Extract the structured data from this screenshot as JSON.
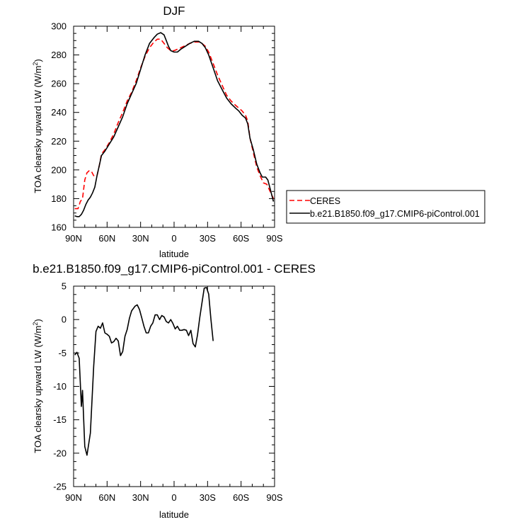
{
  "chart_data": [
    {
      "type": "line",
      "title": "DJF",
      "xlabel": "latitude",
      "ylabel": "TOA clearsky upward LW (W/m²)",
      "xlim": [
        90,
        -90
      ],
      "ylim": [
        160,
        300
      ],
      "x_ticks": [
        90,
        60,
        30,
        0,
        -30,
        -60,
        -90
      ],
      "x_tick_labels": [
        "90N",
        "60N",
        "30N",
        "0",
        "30S",
        "60S",
        "90S"
      ],
      "y_ticks": [
        160,
        180,
        200,
        220,
        240,
        260,
        280,
        300
      ],
      "y_tick_labels": [
        "160",
        "180",
        "200",
        "220",
        "240",
        "260",
        "280",
        "300"
      ],
      "legend_position": "right",
      "series": [
        {
          "name": "CERES",
          "color": "#ff0000",
          "dash": "dashed",
          "points": [
            [
              89,
              173
            ],
            [
              86,
              173
            ],
            [
              84,
              178
            ],
            [
              82,
              180
            ],
            [
              80,
              193
            ],
            [
              78,
              198
            ],
            [
              76,
              199.5
            ],
            [
              74,
              199
            ],
            [
              72,
              196
            ],
            [
              69,
              196
            ],
            [
              67,
              203
            ],
            [
              65,
              211
            ],
            [
              62,
              214
            ],
            [
              58,
              219
            ],
            [
              54,
              225
            ],
            [
              50,
              233
            ],
            [
              46,
              240
            ],
            [
              42,
              248
            ],
            [
              38,
              254
            ],
            [
              34,
              262
            ],
            [
              30,
              271
            ],
            [
              26,
              279
            ],
            [
              22,
              285
            ],
            [
              18,
              289
            ],
            [
              15,
              291
            ],
            [
              12,
              291
            ],
            [
              9,
              288
            ],
            [
              6,
              285
            ],
            [
              3,
              283
            ],
            [
              0,
              283
            ],
            [
              -3,
              284
            ],
            [
              -6,
              285
            ],
            [
              -10,
              286.5
            ],
            [
              -14,
              288
            ],
            [
              -18,
              289
            ],
            [
              -22,
              289
            ],
            [
              -25,
              288
            ],
            [
              -28,
              286
            ],
            [
              -31,
              282
            ],
            [
              -35,
              274
            ],
            [
              -39,
              266
            ],
            [
              -43,
              259
            ],
            [
              -47,
              252
            ],
            [
              -51,
              248
            ],
            [
              -55,
              245
            ],
            [
              -58,
              243
            ],
            [
              -61,
              241
            ],
            [
              -64,
              238
            ],
            [
              -66,
              234
            ],
            [
              -68,
              222
            ],
            [
              -71,
              212
            ],
            [
              -74,
              202
            ],
            [
              -77,
              196
            ],
            [
              -80,
              191
            ],
            [
              -83,
              190
            ],
            [
              -86,
              185
            ],
            [
              -89,
              180
            ]
          ]
        },
        {
          "name": "b.e21.B1850.f09_g17.CMIP6-piControl.001",
          "color": "#000000",
          "dash": "solid",
          "points": [
            [
              89,
              168
            ],
            [
              87,
              167.5
            ],
            [
              85,
              167.5
            ],
            [
              83,
              169
            ],
            [
              81,
              172
            ],
            [
              79,
              176
            ],
            [
              77,
              179
            ],
            [
              75,
              181
            ],
            [
              73,
              184
            ],
            [
              71,
              188
            ],
            [
              69,
              196
            ],
            [
              67,
              203
            ],
            [
              65,
              210
            ],
            [
              62,
              213
            ],
            [
              58,
              218
            ],
            [
              54,
              223
            ],
            [
              50,
              230
            ],
            [
              46,
              237
            ],
            [
              42,
              246
            ],
            [
              38,
              253
            ],
            [
              34,
              260
            ],
            [
              30,
              270
            ],
            [
              26,
              280
            ],
            [
              22,
              288
            ],
            [
              18,
              292
            ],
            [
              15,
              294.5
            ],
            [
              12,
              295.5
            ],
            [
              9,
              294
            ],
            [
              7,
              290
            ],
            [
              5,
              286
            ],
            [
              3,
              283
            ],
            [
              0,
              282
            ],
            [
              -3,
              282
            ],
            [
              -6,
              284
            ],
            [
              -10,
              286
            ],
            [
              -14,
              288
            ],
            [
              -18,
              289.5
            ],
            [
              -22,
              289.5
            ],
            [
              -25,
              288
            ],
            [
              -28,
              285
            ],
            [
              -31,
              280
            ],
            [
              -35,
              271
            ],
            [
              -39,
              262
            ],
            [
              -43,
              256
            ],
            [
              -47,
              250
            ],
            [
              -51,
              246
            ],
            [
              -55,
              243
            ],
            [
              -58,
              241
            ],
            [
              -61,
              238
            ],
            [
              -64,
              236
            ],
            [
              -66,
              232
            ],
            [
              -68,
              222
            ],
            [
              -71,
              214
            ],
            [
              -74,
              204
            ],
            [
              -77,
              198
            ],
            [
              -79,
              195
            ],
            [
              -82,
              195
            ],
            [
              -84,
              193
            ],
            [
              -86,
              187
            ],
            [
              -89,
              178
            ]
          ]
        }
      ]
    },
    {
      "type": "line",
      "title": "b.e21.B1850.f09_g17.CMIP6-piControl.001 - CERES",
      "xlabel": "latitude",
      "ylabel": "TOA clearsky upward LW (W/m²)",
      "xlim": [
        90,
        -90
      ],
      "ylim": [
        -25,
        5
      ],
      "x_ticks": [
        90,
        60,
        30,
        0,
        -30,
        -60,
        -90
      ],
      "x_tick_labels": [
        "90N",
        "60N",
        "30N",
        "0",
        "30S",
        "60S",
        "90S"
      ],
      "y_ticks": [
        -25,
        -20,
        -15,
        -10,
        -5,
        0,
        5
      ],
      "y_tick_labels": [
        "-25",
        "-20",
        "-15",
        "-10",
        "-5",
        "0",
        "5"
      ],
      "series": [
        {
          "color": "#000000",
          "dash": "solid",
          "points": [
            [
              89,
              -5.3
            ],
            [
              87,
              -4.9
            ],
            [
              85,
              -5.8
            ],
            [
              83,
              -13
            ],
            [
              82,
              -10.6
            ],
            [
              80,
              -19
            ],
            [
              78,
              -20.3
            ],
            [
              75,
              -17
            ],
            [
              72,
              -7
            ],
            [
              70,
              -1.8
            ],
            [
              68,
              -1
            ],
            [
              66,
              -1.3
            ],
            [
              64,
              -0.5
            ],
            [
              62,
              -2
            ],
            [
              60,
              -2.2
            ],
            [
              58,
              -2.5
            ],
            [
              56,
              -3.5
            ],
            [
              54,
              -3.3
            ],
            [
              52,
              -2.8
            ],
            [
              50,
              -3.2
            ],
            [
              48,
              -5.4
            ],
            [
              46,
              -4.8
            ],
            [
              44,
              -2.5
            ],
            [
              42,
              -1.5
            ],
            [
              40,
              0.2
            ],
            [
              38,
              1.3
            ],
            [
              35,
              2
            ],
            [
              33,
              2.2
            ],
            [
              31,
              1.5
            ],
            [
              29,
              0.3
            ],
            [
              27,
              -1
            ],
            [
              25,
              -2
            ],
            [
              23,
              -2
            ],
            [
              21,
              -1
            ],
            [
              19,
              -0.5
            ],
            [
              17,
              0.7
            ],
            [
              15,
              0.7
            ],
            [
              13,
              0
            ],
            [
              11,
              0.6
            ],
            [
              9,
              0.4
            ],
            [
              7,
              -0.3
            ],
            [
              5,
              -0.5
            ],
            [
              3,
              0
            ],
            [
              1,
              -0.6
            ],
            [
              -1,
              -1.4
            ],
            [
              -3,
              -1
            ],
            [
              -5,
              -1.6
            ],
            [
              -7,
              -1.6
            ],
            [
              -9,
              -1.5
            ],
            [
              -11,
              -1.6
            ],
            [
              -13,
              -2.4
            ],
            [
              -15,
              -1.6
            ],
            [
              -17,
              -3.6
            ],
            [
              -19,
              -4.1
            ],
            [
              -21,
              -2.3
            ],
            [
              -23,
              0.3
            ],
            [
              -25,
              2.5
            ],
            [
              -27,
              4.7
            ],
            [
              -29,
              4.8
            ],
            [
              -31,
              3.8
            ],
            [
              -33,
              0
            ],
            [
              -35,
              -3.2
            ]
          ]
        }
      ]
    }
  ]
}
